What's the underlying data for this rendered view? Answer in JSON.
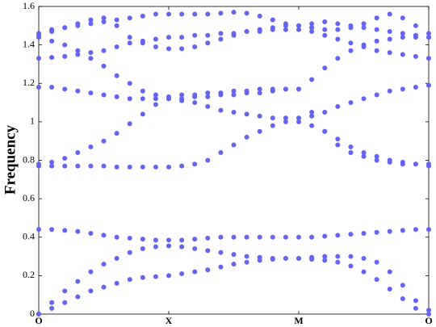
{
  "chart_data": {
    "type": "scatter",
    "y_label": "Frequency",
    "color": "#6464f0",
    "x": [
      0,
      0.1,
      0.2,
      0.3,
      0.4,
      0.5,
      0.6,
      0.7,
      0.8,
      0.9,
      1,
      1.1,
      1.2,
      1.3,
      1.4,
      1.5,
      1.6,
      1.7,
      1.8,
      1.9,
      2,
      2.1,
      2.2,
      2.3,
      2.4,
      2.5,
      2.6,
      2.7,
      2.8,
      2.9,
      3
    ],
    "series": [
      {
        "values": [
          0,
          0.03,
          0.06,
          0.09,
          0.12,
          0.14,
          0.16,
          0.18,
          0.19,
          0.195,
          0.2,
          0.21,
          0.22,
          0.23,
          0.245,
          0.26,
          0.27,
          0.28,
          0.285,
          0.29,
          0.29,
          0.285,
          0.28,
          0.27,
          0.25,
          0.22,
          0.18,
          0.13,
          0.08,
          0.03,
          0
        ]
      },
      {
        "values": [
          0,
          0.06,
          0.12,
          0.17,
          0.22,
          0.26,
          0.29,
          0.32,
          0.34,
          0.35,
          0.355,
          0.35,
          0.34,
          0.33,
          0.32,
          0.31,
          0.3,
          0.295,
          0.29,
          0.29,
          0.29,
          0.295,
          0.3,
          0.3,
          0.3,
          0.29,
          0.27,
          0.22,
          0.15,
          0.07,
          0.02
        ]
      },
      {
        "values": [
          0.44,
          0.44,
          0.435,
          0.43,
          0.42,
          0.41,
          0.4,
          0.395,
          0.39,
          0.385,
          0.385,
          0.385,
          0.39,
          0.395,
          0.4,
          0.4,
          0.4,
          0.4,
          0.4,
          0.4,
          0.4,
          0.4,
          0.405,
          0.41,
          0.415,
          0.42,
          0.425,
          0.43,
          0.435,
          0.44,
          0.44
        ]
      },
      {
        "values": [
          0.77,
          0.77,
          0.77,
          0.77,
          0.77,
          0.77,
          0.765,
          0.765,
          0.765,
          0.765,
          0.765,
          0.77,
          0.78,
          0.8,
          0.84,
          0.88,
          0.92,
          0.95,
          0.98,
          1.0,
          1.0,
          0.98,
          0.95,
          0.91,
          0.87,
          0.84,
          0.82,
          0.8,
          0.79,
          0.78,
          0.77
        ]
      },
      {
        "values": [
          0.78,
          0.79,
          0.81,
          0.84,
          0.87,
          0.9,
          0.94,
          0.99,
          1.04,
          1.09,
          1.12,
          1.12,
          1.13,
          1.13,
          1.14,
          1.14,
          1.15,
          1.15,
          1.16,
          1.17,
          1.17,
          1.05,
          0.95,
          0.88,
          0.84,
          0.82,
          0.8,
          0.79,
          0.78,
          0.78,
          0.78
        ]
      },
      {
        "values": [
          1.18,
          1.18,
          1.17,
          1.16,
          1.15,
          1.14,
          1.13,
          1.12,
          1.12,
          1.12,
          1.12,
          1.11,
          1.1,
          1.08,
          1.06,
          1.05,
          1.04,
          1.03,
          1.02,
          1.02,
          1.02,
          1.03,
          1.05,
          1.08,
          1.1,
          1.12,
          1.14,
          1.16,
          1.17,
          1.18,
          1.19
        ]
      },
      {
        "values": [
          1.44,
          1.42,
          1.4,
          1.37,
          1.33,
          1.29,
          1.24,
          1.2,
          1.16,
          1.14,
          1.13,
          1.14,
          1.14,
          1.15,
          1.15,
          1.16,
          1.16,
          1.17,
          1.17,
          1.17,
          1.17,
          1.22,
          1.28,
          1.33,
          1.37,
          1.4,
          1.42,
          1.43,
          1.44,
          1.44,
          1.44
        ]
      },
      {
        "values": [
          1.33,
          1.335,
          1.34,
          1.35,
          1.36,
          1.37,
          1.39,
          1.41,
          1.42,
          1.43,
          1.44,
          1.44,
          1.45,
          1.45,
          1.46,
          1.46,
          1.47,
          1.47,
          1.48,
          1.48,
          1.48,
          1.47,
          1.45,
          1.43,
          1.41,
          1.39,
          1.37,
          1.36,
          1.35,
          1.34,
          1.33
        ]
      },
      {
        "values": [
          1.45,
          1.47,
          1.49,
          1.51,
          1.53,
          1.54,
          1.5,
          1.44,
          1.41,
          1.39,
          1.38,
          1.38,
          1.39,
          1.41,
          1.43,
          1.45,
          1.47,
          1.48,
          1.49,
          1.5,
          1.5,
          1.51,
          1.52,
          1.51,
          1.5,
          1.49,
          1.48,
          1.47,
          1.46,
          1.45,
          1.44
        ]
      },
      {
        "values": [
          1.46,
          1.48,
          1.49,
          1.5,
          1.51,
          1.52,
          1.53,
          1.54,
          1.55,
          1.56,
          1.56,
          1.56,
          1.56,
          1.56,
          1.565,
          1.57,
          1.565,
          1.55,
          1.53,
          1.51,
          1.5,
          1.49,
          1.48,
          1.48,
          1.49,
          1.51,
          1.54,
          1.56,
          1.54,
          1.5,
          1.46
        ]
      }
    ],
    "xlim": [
      0,
      3
    ],
    "xticks": [
      {
        "value": 0,
        "label": "O"
      },
      {
        "value": 1,
        "label": "X"
      },
      {
        "value": 2,
        "label": "M"
      },
      {
        "value": 3,
        "label": "O"
      }
    ],
    "ylim": [
      0,
      1.6
    ],
    "yticks": [
      0,
      0.2,
      0.4,
      0.6,
      0.8,
      1,
      1.2,
      1.4,
      1.6
    ]
  }
}
